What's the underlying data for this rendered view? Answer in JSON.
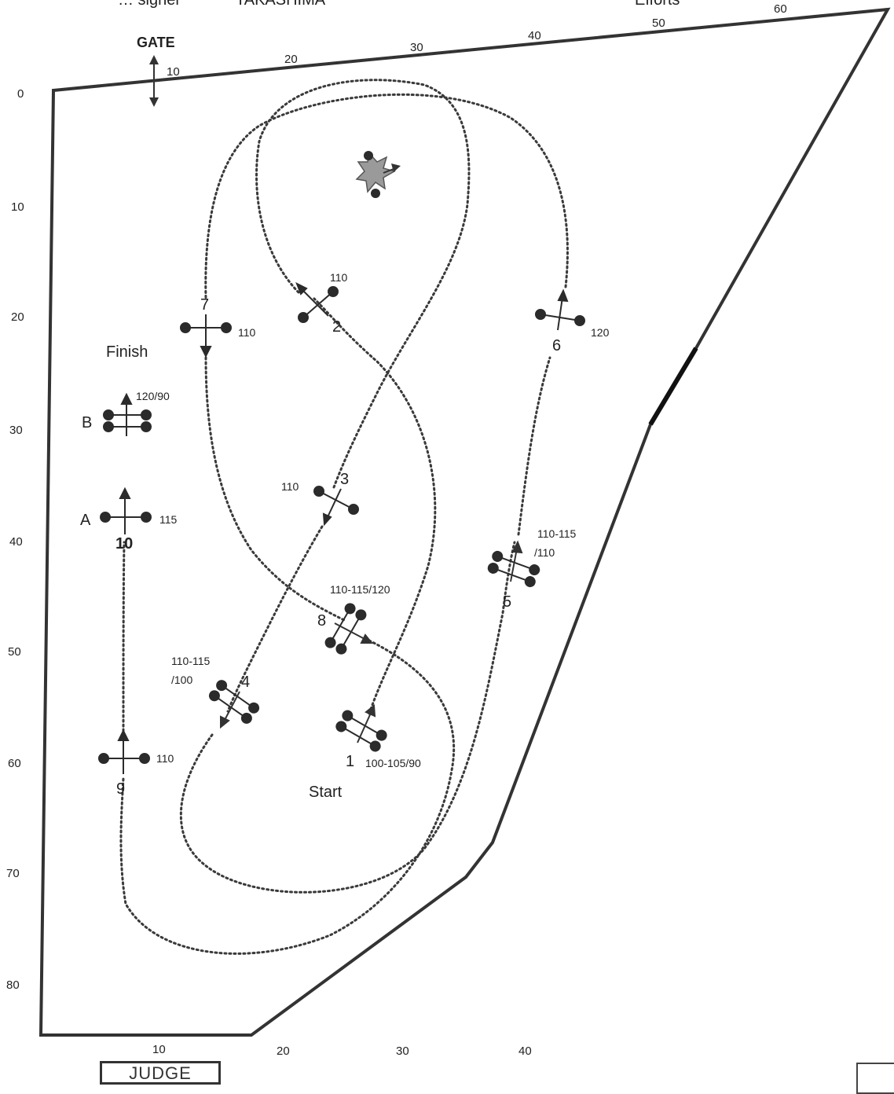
{
  "header": {
    "left_fragment": "… signer",
    "center_fragment": "TAKASHIMA",
    "right_fragment": "Efforts"
  },
  "ruler": {
    "top": [
      "10",
      "20",
      "30",
      "40",
      "50",
      "60"
    ],
    "left": [
      "0",
      "10",
      "20",
      "30",
      "40",
      "50",
      "60",
      "70",
      "80"
    ],
    "bottom": [
      "10",
      "20",
      "30",
      "40"
    ]
  },
  "labels": {
    "gate": "GATE",
    "finish": "Finish",
    "start": "Start",
    "judge": "JUDGE"
  },
  "fences": [
    {
      "num": "1",
      "height": "100-105/90"
    },
    {
      "num": "2",
      "height": "110"
    },
    {
      "num": "3",
      "height": "110"
    },
    {
      "num": "4",
      "height": "110-115\n/100"
    },
    {
      "num": "5",
      "height": "110-115\n/110"
    },
    {
      "num": "6",
      "height": "120"
    },
    {
      "num": "7",
      "height": "110"
    },
    {
      "num": "8",
      "height": "110-115/120"
    },
    {
      "num": "9",
      "height": "110"
    },
    {
      "num": "10",
      "height": ""
    }
  ],
  "combination": [
    {
      "num": "A",
      "height": "115"
    },
    {
      "num": "B",
      "height": "120/90"
    }
  ],
  "colors": {
    "line": "#333333",
    "route": "#3a3a3a",
    "obstacle": "#2b2b2b",
    "water": "#9a9a9a"
  }
}
